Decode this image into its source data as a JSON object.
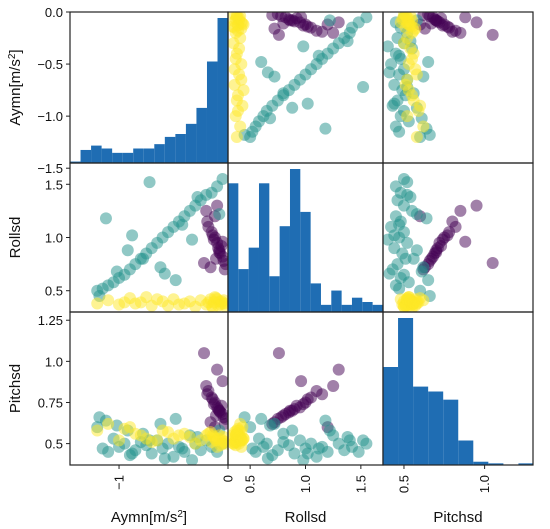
{
  "chart_data": {
    "type": "scatter",
    "title": "",
    "variables": [
      {
        "key": "aymn",
        "label_base": "Aymn[m/s",
        "label_sup": "2",
        "label_end": "]",
        "range": [
          -1.45,
          0.0
        ]
      },
      {
        "key": "rollsd",
        "label_base": "Rollsd",
        "label_sup": "",
        "label_end": "",
        "range": [
          0.3,
          1.7
        ]
      },
      {
        "key": "pitchsd",
        "label_base": "Pitchsd",
        "label_sup": "",
        "label_end": "",
        "range": [
          0.37,
          1.3
        ]
      }
    ],
    "ticks": {
      "aymn_y": [
        {
          "v": 0.0,
          "t": "0.0"
        },
        {
          "v": -0.5,
          "t": "−0.5"
        },
        {
          "v": -1.0,
          "t": "−1.0"
        },
        {
          "v": -1.5,
          "t": "−1.5"
        }
      ],
      "rollsd_y": [
        {
          "v": 1.5,
          "t": "1.5"
        },
        {
          "v": 1.0,
          "t": "1.0"
        },
        {
          "v": 0.5,
          "t": "0.5"
        }
      ],
      "pitchsd_y": [
        {
          "v": 1.25,
          "t": "1.25"
        },
        {
          "v": 1.0,
          "t": "1.0"
        },
        {
          "v": 0.75,
          "t": "0.75"
        },
        {
          "v": 0.5,
          "t": "0.5"
        }
      ],
      "aymn_x": [
        {
          "v": -1.0,
          "t": "−1"
        },
        {
          "v": 0.0,
          "t": "0"
        }
      ],
      "rollsd_x": [
        {
          "v": 0.5,
          "t": "0.5"
        },
        {
          "v": 1.0,
          "t": "1.0"
        },
        {
          "v": 1.5,
          "t": "1.5"
        }
      ],
      "pitchsd_x": [
        {
          "v": 0.5,
          "t": "0.5"
        },
        {
          "v": 1.0,
          "t": "1.0"
        }
      ]
    },
    "colors": {
      "class_purple": "#440154",
      "class_teal": "#21918c",
      "class_yellow": "#fde725",
      "histogram": "#1f6db3"
    },
    "histograms": {
      "aymn": {
        "bin_start": -1.45,
        "bin_width": 0.0967,
        "counts": [
          1,
          9,
          12,
          10,
          7,
          7,
          10,
          10,
          13,
          18,
          20,
          27,
          38,
          70,
          100
        ]
      },
      "rollsd": {
        "bin_start": 0.3,
        "bin_width": 0.0933,
        "counts": [
          90,
          30,
          45,
          90,
          25,
          60,
          100,
          70,
          20,
          5,
          15,
          5,
          10,
          7,
          5
        ]
      },
      "pitchsd": {
        "bin_start": 0.37,
        "bin_width": 0.0933,
        "counts": [
          60,
          90,
          48,
          45,
          40,
          15,
          2,
          1,
          0,
          1,
          0,
          0,
          0,
          0,
          0
        ]
      }
    },
    "series": [
      {
        "name": "",
        "color": "#440154",
        "aymn": [
          -0.02,
          -0.05,
          -0.08,
          -0.1,
          -0.12,
          -0.15,
          -0.18,
          -0.2,
          -0.04,
          -0.07,
          -0.13,
          -0.09,
          -0.16,
          -0.11,
          -0.06,
          -0.14,
          -0.19,
          -0.03,
          -0.1,
          -0.08,
          -0.22,
          -0.05,
          -0.12
        ],
        "rollsd": [
          0.75,
          0.82,
          0.88,
          0.95,
          1.0,
          1.05,
          1.1,
          1.25,
          0.78,
          0.85,
          0.98,
          0.9,
          0.72,
          0.8,
          0.92,
          1.02,
          1.15,
          0.7,
          1.3,
          0.86,
          0.76,
          0.96,
          1.2
        ],
        "pitchsd": [
          0.65,
          0.68,
          0.7,
          0.72,
          0.75,
          0.78,
          0.82,
          0.85,
          0.66,
          0.69,
          0.74,
          0.71,
          0.63,
          0.67,
          0.73,
          0.77,
          0.8,
          0.62,
          0.95,
          0.7,
          1.05,
          0.88,
          0.6
        ]
      },
      {
        "name": "",
        "color": "#21918c",
        "aymn": [
          -0.05,
          -0.1,
          -0.15,
          -0.2,
          -0.25,
          -0.3,
          -0.35,
          -0.4,
          -0.45,
          -0.5,
          -0.55,
          -0.6,
          -0.65,
          -0.7,
          -0.75,
          -0.8,
          -0.85,
          -0.9,
          -0.95,
          -1.0,
          -1.05,
          -1.1,
          -1.15,
          -1.2,
          -0.48,
          -0.62,
          -0.78,
          -0.92,
          -1.12,
          -0.33,
          -0.08,
          -0.28,
          -0.58,
          -0.88,
          -1.18,
          -0.72,
          -1.02,
          -0.42
        ],
        "rollsd": [
          1.55,
          1.48,
          1.42,
          1.4,
          1.35,
          1.3,
          1.25,
          1.2,
          1.15,
          1.1,
          1.05,
          1.0,
          0.95,
          0.9,
          0.85,
          0.8,
          0.75,
          0.7,
          0.65,
          0.62,
          0.58,
          0.55,
          0.52,
          0.5,
          0.6,
          0.72,
          0.8,
          0.88,
          1.18,
          0.98,
          1.22,
          1.38,
          0.66,
          1.02,
          0.45,
          1.52,
          0.68,
          1.12
        ],
        "pitchsd": [
          0.5,
          0.45,
          0.48,
          0.52,
          0.46,
          0.5,
          0.55,
          0.45,
          0.48,
          0.42,
          0.5,
          0.47,
          0.52,
          0.44,
          0.49,
          0.51,
          0.46,
          0.43,
          0.5,
          0.48,
          0.53,
          0.45,
          0.47,
          0.6,
          0.65,
          0.62,
          0.56,
          0.58,
          0.64,
          0.4,
          0.58,
          0.54,
          0.41,
          0.44,
          0.66,
          0.52,
          0.61,
          0.47
        ]
      },
      {
        "name": "",
        "color": "#fde725",
        "aymn": [
          -0.02,
          -0.05,
          -0.08,
          -0.1,
          -0.12,
          -0.15,
          -0.18,
          -0.04,
          -0.07,
          -0.11,
          -0.14,
          -0.06,
          -0.09,
          -0.03,
          -0.16,
          -0.13,
          -0.2,
          -0.25,
          -0.3,
          -0.4,
          -0.5,
          -0.6,
          -0.7,
          -0.8,
          -0.9,
          -1.0,
          -1.1,
          -1.2,
          -0.35,
          -0.55,
          -0.75,
          -0.95,
          -0.45,
          -0.65,
          -0.85
        ],
        "rollsd": [
          0.35,
          0.38,
          0.4,
          0.42,
          0.44,
          0.36,
          0.39,
          0.41,
          0.37,
          0.43,
          0.34,
          0.4,
          0.36,
          0.38,
          0.42,
          0.39,
          0.37,
          0.41,
          0.35,
          0.38,
          0.42,
          0.4,
          0.36,
          0.39,
          0.43,
          0.37,
          0.41,
          0.38,
          0.4,
          0.36,
          0.44,
          0.39,
          0.37,
          0.42,
          0.38
        ],
        "pitchsd": [
          0.5,
          0.52,
          0.55,
          0.48,
          0.53,
          0.51,
          0.56,
          0.54,
          0.49,
          0.52,
          0.55,
          0.5,
          0.53,
          0.51,
          0.57,
          0.54,
          0.55,
          0.52,
          0.5,
          0.56,
          0.53,
          0.58,
          0.51,
          0.55,
          0.6,
          0.52,
          0.62,
          0.58,
          0.54,
          0.57,
          0.53,
          0.59,
          0.55,
          0.52,
          0.56
        ]
      }
    ]
  }
}
